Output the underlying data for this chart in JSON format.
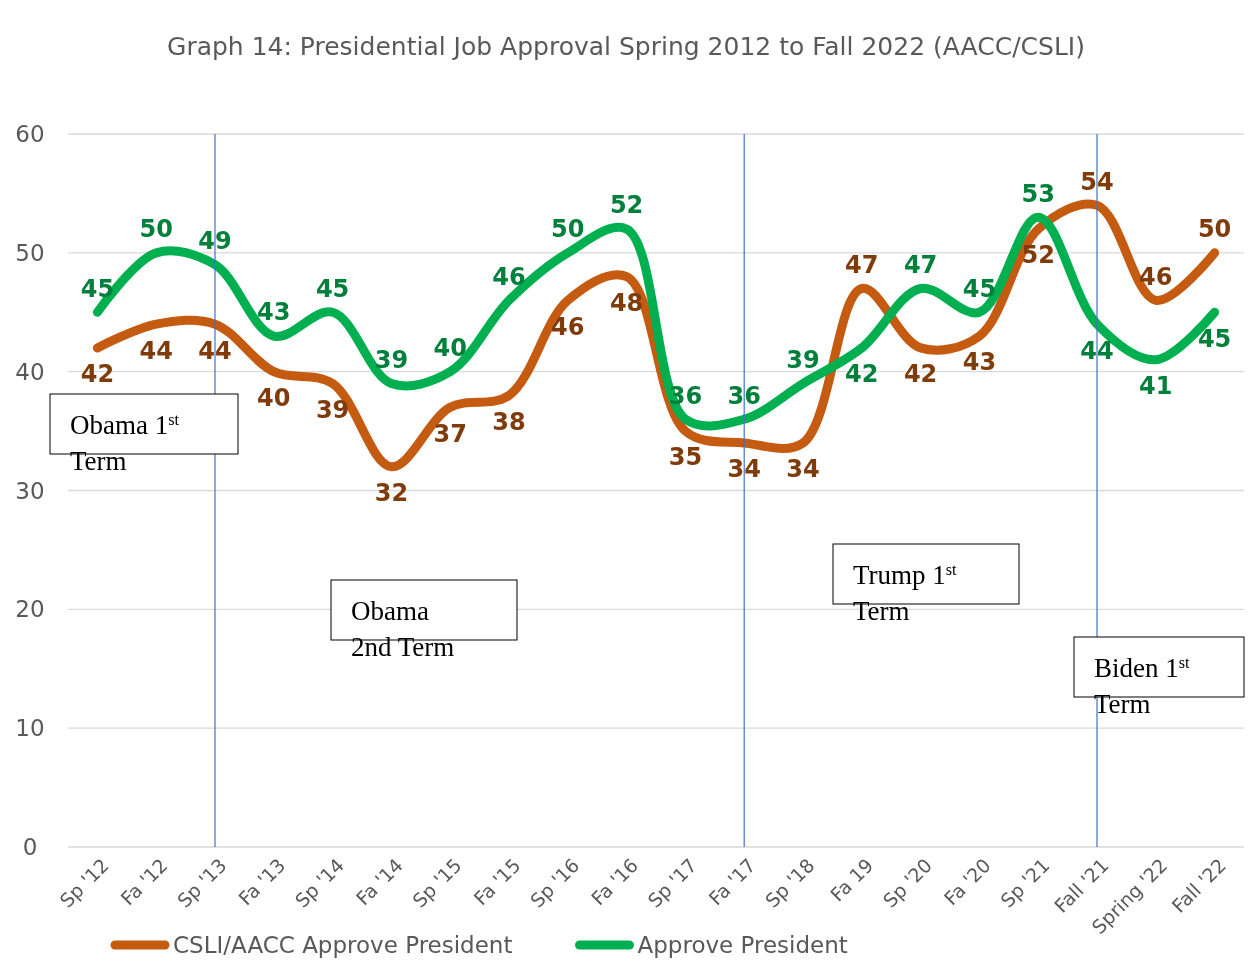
{
  "chart_data": {
    "type": "line",
    "title": "Graph 14: Presidential Job Approval Spring 2012 to Fall 2022 (AACC/CSLI)",
    "categories": [
      "Sp '12",
      "Fa '12",
      "Sp '13",
      "Fa '13",
      "Sp '14",
      "Fa '14",
      "Sp '15",
      "Fa '15",
      "Sp '16",
      "Fa '16",
      "Sp '17",
      "Fa '17",
      "Sp '18",
      "Fa 19",
      "Sp '20",
      "Fa '20",
      "Sp '21",
      "Fall '21",
      "Spring '22",
      "Fall '22"
    ],
    "series": [
      {
        "name": "CSLI/AACC Approve President",
        "color": "#c55a11",
        "values": [
          42,
          44,
          44,
          40,
          39,
          32,
          37,
          38,
          46,
          48,
          35,
          34,
          34,
          47,
          42,
          43,
          52,
          54,
          46,
          50
        ]
      },
      {
        "name": "Approve President",
        "color": "#00b050",
        "values": [
          45,
          50,
          49,
          43,
          45,
          39,
          40,
          46,
          50,
          52,
          36,
          36,
          39,
          42,
          47,
          45,
          53,
          44,
          41,
          45
        ]
      }
    ],
    "ylim": [
      0,
      60
    ],
    "yticks": [
      0,
      10,
      20,
      30,
      40,
      50,
      60
    ],
    "grid": "y",
    "legend": "bottom",
    "data_labels": true,
    "marker": "none",
    "line_style": "solid",
    "ref_lines": [
      {
        "axis": "x",
        "value": "Sp '13",
        "color": "#4472c4"
      },
      {
        "axis": "x",
        "value": "Fa '17",
        "color": "#4472c4"
      },
      {
        "axis": "x",
        "value": "Fall '21",
        "color": "#4472c4"
      }
    ],
    "annotations": [
      "Obama 1$^{st}$ Term",
      "Obama 2nd Term",
      "Trump 1$^{st}$ Term",
      "Biden 1$^{st}$ Term"
    ]
  }
}
